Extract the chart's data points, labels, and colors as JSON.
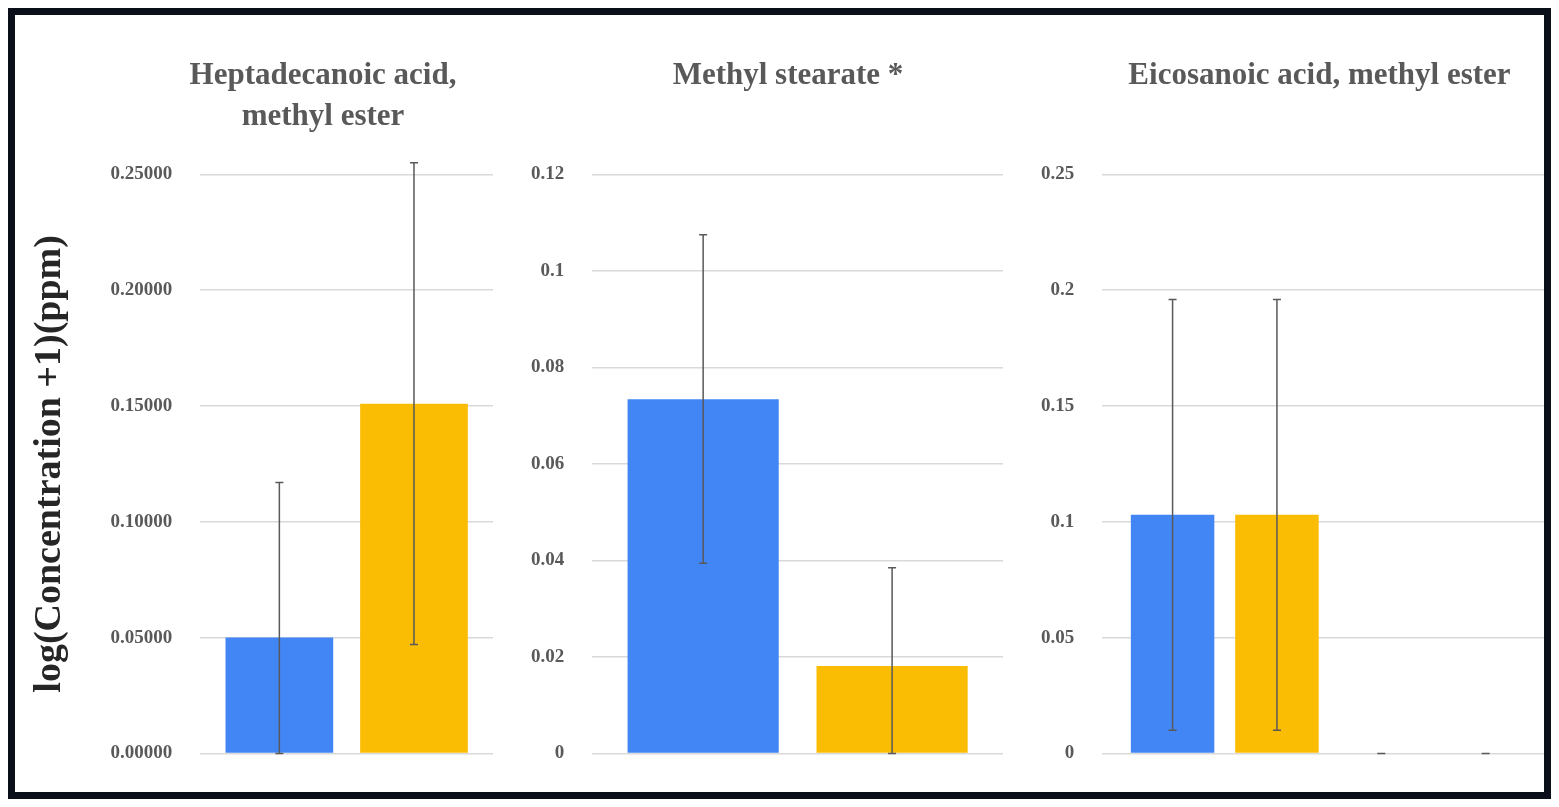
{
  "chart_data": [
    {
      "type": "bar",
      "title": "Heptadecanoic acid, methyl ester",
      "ylabel": "log(Concentration +1)(ppm)",
      "categories": [
        null
      ],
      "series": [
        {
          "color": "#4285f4",
          "values": [
            0.05
          ],
          "errors": [
            [
              0,
              0.117
            ]
          ]
        },
        {
          "color": "#fbbc04",
          "values": [
            0.151
          ],
          "errors": [
            [
              0.047,
              0.255
            ]
          ]
        }
      ],
      "ylim": [
        0,
        0.25
      ],
      "yticks": [
        {
          "value": 0,
          "label": "0.00000"
        },
        {
          "value": 0.05,
          "label": "0.05000"
        },
        {
          "value": 0.1,
          "label": "0.10000"
        },
        {
          "value": 0.15,
          "label": "0.15000"
        },
        {
          "value": 0.2,
          "label": "0.20000"
        },
        {
          "value": 0.25,
          "label": "0.25000"
        }
      ],
      "grid": "y",
      "legend": false
    },
    {
      "type": "bar",
      "title": "Methyl stearate *",
      "categories": [
        null
      ],
      "series": [
        {
          "color": "#4285f4",
          "values": [
            0.0734
          ],
          "errors": [
            [
              0.0394,
              0.1075
            ]
          ]
        },
        {
          "color": "#fbbc04",
          "values": [
            0.0181
          ],
          "errors": [
            [
              0,
              0.0385
            ]
          ]
        }
      ],
      "ylim": [
        0,
        0.12
      ],
      "yticks": [
        0,
        0.02,
        0.04,
        0.06,
        0.08,
        0.1,
        0.12
      ],
      "grid": "y",
      "legend": false
    },
    {
      "type": "bar",
      "title": "Eicosanoic acid, methyl ester",
      "categories": [
        null
      ],
      "series": [
        {
          "color": "#4285f4",
          "values": [
            0.103
          ],
          "errors": [
            [
              0.01,
              0.196
            ]
          ]
        },
        {
          "color": "#fbbc04",
          "values": [
            0.103
          ],
          "errors": [
            [
              0.01,
              0.196
            ]
          ]
        },
        {
          "color": "#ea4335",
          "values": [
            0
          ],
          "errors": [
            0
          ]
        },
        {
          "color": "#34a853",
          "values": [
            0
          ],
          "errors": [
            0
          ]
        }
      ],
      "ylim": [
        0,
        0.25
      ],
      "yticks": [
        0,
        0.05,
        0.1,
        0.15,
        0.2,
        0.25
      ],
      "grid": "y",
      "legend": false
    }
  ]
}
